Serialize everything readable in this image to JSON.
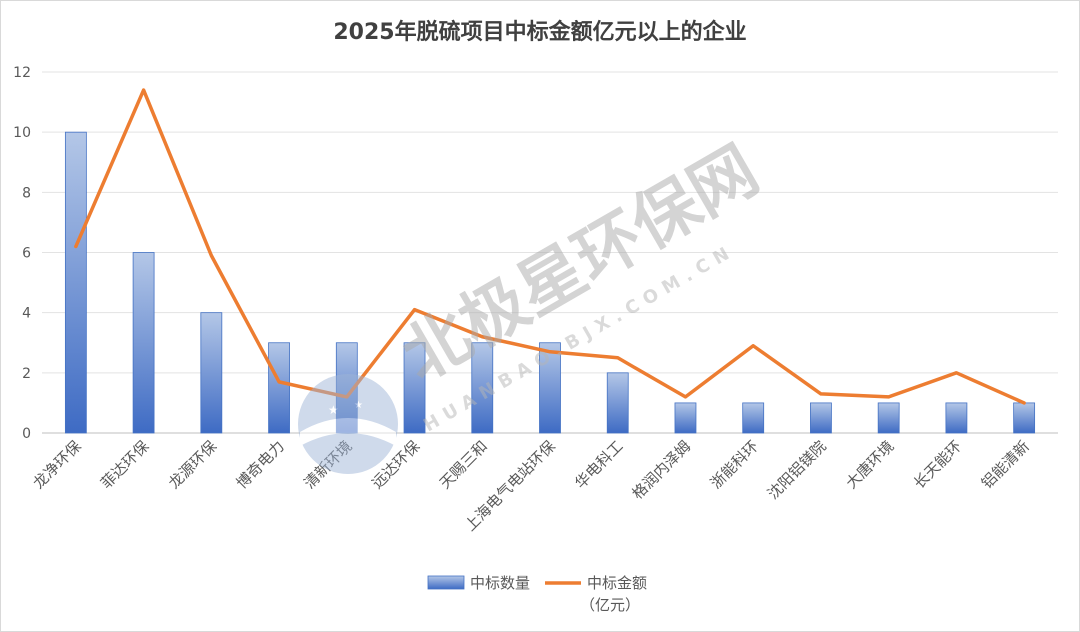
{
  "chart_data": {
    "type": "bar+line",
    "title": "2025年脱硫项目中标金额亿元以上的企业",
    "categories": [
      "龙净环保",
      "菲达环保",
      "龙源环保",
      "博奇电力",
      "清新环境",
      "远达环保",
      "天赐三和",
      "上海电气电站环保",
      "华电科工",
      "格润内泽姆",
      "浙能科环",
      "沈阳铝镁院",
      "大唐环境",
      "长天能环",
      "铝能清新"
    ],
    "series": [
      {
        "name": "中标数量",
        "type": "bar",
        "values": [
          10,
          6,
          4,
          3,
          3,
          3,
          3,
          3,
          2,
          1,
          1,
          1,
          1,
          1,
          1
        ],
        "color": "#4472c4"
      },
      {
        "name": "中标金额",
        "name_line2": "（亿元）",
        "type": "line",
        "values": [
          6.2,
          11.4,
          5.9,
          1.7,
          1.2,
          4.1,
          3.2,
          2.7,
          2.5,
          1.2,
          2.9,
          1.3,
          1.2,
          2.0,
          1.0
        ],
        "color": "#ed7d31"
      }
    ],
    "yticks": [
      "0",
      "2",
      "4",
      "6",
      "8",
      "10",
      "12"
    ],
    "ylim": [
      0,
      12
    ],
    "grid": true,
    "legend": "bottom"
  },
  "watermark": {
    "brand": "北极星环保网",
    "domain": "HUANBAO.BJX.COM.CN"
  }
}
